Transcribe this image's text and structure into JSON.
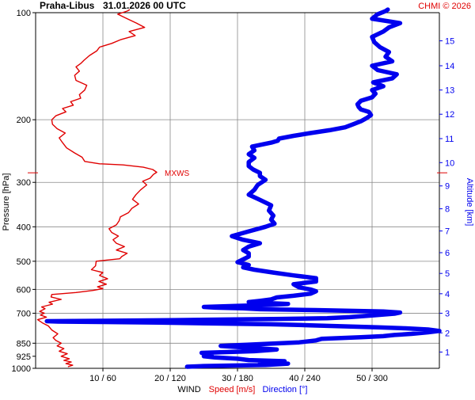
{
  "header": {
    "station": "Praha-Libus",
    "datetime": "31.01.2026 00 UTC",
    "credit": "CHMI © 2026"
  },
  "colors": {
    "speed": "#e00000",
    "direction": "#0000ee",
    "grid": "#888888",
    "axis": "#000000",
    "credit": "#e00000"
  },
  "chart_data": {
    "type": "line",
    "pressure_axis": {
      "label": "Pressure [hPa]",
      "scale": "log",
      "range": [
        1000,
        100
      ],
      "ticks": [
        100,
        200,
        300,
        400,
        500,
        600,
        700,
        850,
        925,
        1000
      ],
      "tick_labels": [
        "100",
        "200",
        "300",
        "400",
        "500",
        "600",
        "700",
        "850",
        "925",
        "1000"
      ],
      "gridlines": [
        200,
        300,
        400,
        500,
        600,
        700,
        850
      ]
    },
    "altitude_axis": {
      "label": "Altitude [km]",
      "ticks": [
        1,
        2,
        3,
        4,
        5,
        6,
        7,
        8,
        9,
        10,
        11,
        12,
        13,
        14,
        15
      ],
      "tick_labels": [
        "1",
        "2",
        "3",
        "4",
        "5",
        "6",
        "7",
        "8",
        "9",
        "10",
        "11",
        "12",
        "13",
        "14",
        "15"
      ],
      "pressure_at_km": [
        900,
        795,
        700,
        617,
        541,
        473,
        411,
        356,
        307,
        264,
        226,
        193,
        165,
        141,
        120
      ]
    },
    "wind_axis": {
      "label": "WIND",
      "speed_label": "Speed [m/s]",
      "direction_label": "Direction [°]",
      "speed_range": [
        0,
        60
      ],
      "direction_range": [
        0,
        360
      ],
      "ticks": [
        10,
        20,
        30,
        40,
        50
      ],
      "tick_labels": [
        "10 / 60",
        "20 / 120",
        "30 / 180",
        "40 / 240",
        "50 / 300"
      ]
    },
    "annotations": [
      {
        "text": "MXWS",
        "pressure": 282,
        "speed": 18.0
      }
    ],
    "series": [
      {
        "name": "Speed [m/s]",
        "color": "#e00000",
        "points": [
          [
            990,
            4.8
          ],
          [
            980,
            5.5
          ],
          [
            970,
            4.5
          ],
          [
            960,
            5.3
          ],
          [
            950,
            4.2
          ],
          [
            940,
            5.0
          ],
          [
            925,
            3.8
          ],
          [
            910,
            4.7
          ],
          [
            895,
            3.5
          ],
          [
            880,
            4.2
          ],
          [
            865,
            3.2
          ],
          [
            850,
            3.8
          ],
          [
            835,
            3.0
          ],
          [
            820,
            2.6
          ],
          [
            800,
            3.3
          ],
          [
            780,
            2.4
          ],
          [
            760,
            1.9
          ],
          [
            745,
            1.0
          ],
          [
            730,
            0.3
          ],
          [
            718,
            1.6
          ],
          [
            708,
            0.7
          ],
          [
            700,
            1.3
          ],
          [
            692,
            0.6
          ],
          [
            680,
            1.4
          ],
          [
            672,
            0.9
          ],
          [
            660,
            2.5
          ],
          [
            652,
            2.0
          ],
          [
            640,
            3.8
          ],
          [
            630,
            2.3
          ],
          [
            620,
            2.4
          ],
          [
            612,
            6.0
          ],
          [
            604,
            8.5
          ],
          [
            597,
            10.0
          ],
          [
            590,
            9.2
          ],
          [
            580,
            10.5
          ],
          [
            570,
            9.4
          ],
          [
            560,
            10.7
          ],
          [
            548,
            9.5
          ],
          [
            538,
            10.0
          ],
          [
            528,
            8.3
          ],
          [
            515,
            8.9
          ],
          [
            500,
            9.0
          ],
          [
            492,
            12.5
          ],
          [
            485,
            12.8
          ],
          [
            475,
            13.6
          ],
          [
            465,
            12.0
          ],
          [
            455,
            13.2
          ],
          [
            445,
            12.0
          ],
          [
            435,
            11.5
          ],
          [
            425,
            12.3
          ],
          [
            415,
            11.3
          ],
          [
            405,
            10.9
          ],
          [
            395,
            12.0
          ],
          [
            385,
            12.4
          ],
          [
            375,
            12.6
          ],
          [
            365,
            13.8
          ],
          [
            355,
            14.3
          ],
          [
            345,
            15.3
          ],
          [
            335,
            14.4
          ],
          [
            325,
            14.9
          ],
          [
            315,
            15.6
          ],
          [
            305,
            16.5
          ],
          [
            298,
            15.9
          ],
          [
            292,
            17.0
          ],
          [
            285,
            17.5
          ],
          [
            281,
            18.0
          ],
          [
            276,
            17.4
          ],
          [
            272,
            16.0
          ],
          [
            268,
            13.0
          ],
          [
            266,
            9.5
          ],
          [
            262,
            7.3
          ],
          [
            255,
            6.9
          ],
          [
            248,
            5.8
          ],
          [
            240,
            4.6
          ],
          [
            232,
            4.0
          ],
          [
            225,
            3.5
          ],
          [
            218,
            4.4
          ],
          [
            212,
            3.2
          ],
          [
            206,
            2.5
          ],
          [
            200,
            2.4
          ],
          [
            195,
            3.0
          ],
          [
            190,
            4.5
          ],
          [
            186,
            4.0
          ],
          [
            182,
            5.6
          ],
          [
            178,
            5.2
          ],
          [
            174,
            6.7
          ],
          [
            170,
            6.5
          ],
          [
            165,
            7.3
          ],
          [
            160,
            7.6
          ],
          [
            155,
            6.0
          ],
          [
            150,
            5.8
          ],
          [
            146,
            6.5
          ],
          [
            142,
            6.0
          ],
          [
            139,
            6.7
          ],
          [
            136,
            7.2
          ],
          [
            132,
            8.0
          ],
          [
            128,
            9.1
          ],
          [
            125,
            9.5
          ],
          [
            122,
            11.3
          ],
          [
            119,
            12.7
          ],
          [
            116,
            14.8
          ],
          [
            113,
            13.9
          ],
          [
            110,
            16.2
          ],
          [
            107,
            15.0
          ],
          [
            104,
            13.6
          ],
          [
            101,
            12.2
          ],
          [
            99,
            13.6
          ],
          [
            98,
            14.0
          ]
        ]
      },
      {
        "name": "Direction [°]",
        "color": "#0000ee",
        "points": [
          [
            990,
            135
          ],
          [
            985,
            150
          ],
          [
            978,
            205
          ],
          [
            970,
            225
          ],
          [
            962,
            200
          ],
          [
            955,
            222
          ],
          [
            948,
            190
          ],
          [
            940,
            180
          ],
          [
            932,
            160
          ],
          [
            925,
            150
          ],
          [
            915,
            157
          ],
          [
            905,
            148
          ],
          [
            895,
            195
          ],
          [
            885,
            215
          ],
          [
            875,
            190
          ],
          [
            865,
            165
          ],
          [
            855,
            200
          ],
          [
            845,
            235
          ],
          [
            835,
            250
          ],
          [
            826,
            255
          ],
          [
            818,
            290
          ],
          [
            812,
            310
          ],
          [
            806,
            320
          ],
          [
            800,
            335
          ],
          [
            792,
            350
          ],
          [
            785,
            360
          ],
          [
            778,
            350
          ],
          [
            772,
            330
          ],
          [
            767,
            305
          ],
          [
            762,
            275
          ],
          [
            757,
            245
          ],
          [
            752,
            210
          ],
          [
            748,
            160
          ],
          [
            744,
            110
          ],
          [
            741,
            60
          ],
          [
            739,
            20
          ],
          [
            737,
            10
          ],
          [
            735,
            60
          ],
          [
            732,
            120
          ],
          [
            729,
            170
          ],
          [
            726,
            220
          ],
          [
            723,
            260
          ],
          [
            718,
            280
          ],
          [
            710,
            300
          ],
          [
            702,
            320
          ],
          [
            697,
            325
          ],
          [
            692,
            310
          ],
          [
            686,
            250
          ],
          [
            682,
            200
          ],
          [
            678,
            185
          ],
          [
            675,
            160
          ],
          [
            672,
            150
          ],
          [
            669,
            170
          ],
          [
            666,
            190
          ],
          [
            663,
            210
          ],
          [
            659,
            225
          ],
          [
            655,
            205
          ],
          [
            651,
            190
          ],
          [
            646,
            200
          ],
          [
            640,
            210
          ],
          [
            632,
            215
          ],
          [
            625,
            230
          ],
          [
            617,
            245
          ],
          [
            607,
            250
          ],
          [
            600,
            245
          ],
          [
            592,
            235
          ],
          [
            580,
            230
          ],
          [
            570,
            250
          ],
          [
            558,
            250
          ],
          [
            548,
            230
          ],
          [
            538,
            212
          ],
          [
            528,
            195
          ],
          [
            520,
            185
          ],
          [
            512,
            190
          ],
          [
            503,
            180
          ],
          [
            494,
            185
          ],
          [
            485,
            190
          ],
          [
            475,
            190
          ],
          [
            465,
            185
          ],
          [
            455,
            190
          ],
          [
            445,
            200
          ],
          [
            435,
            185
          ],
          [
            425,
            175
          ],
          [
            412,
            190
          ],
          [
            400,
            205
          ],
          [
            392,
            213
          ],
          [
            382,
            210
          ],
          [
            372,
            212
          ],
          [
            360,
            208
          ],
          [
            348,
            210
          ],
          [
            336,
            200
          ],
          [
            325,
            190
          ],
          [
            315,
            195
          ],
          [
            305,
            198
          ],
          [
            295,
            205
          ],
          [
            288,
            200
          ],
          [
            282,
            200
          ],
          [
            276,
            194
          ],
          [
            270,
            190
          ],
          [
            263,
            190
          ],
          [
            256,
            195
          ],
          [
            250,
            190
          ],
          [
            244,
            195
          ],
          [
            238,
            193
          ],
          [
            232,
            210
          ],
          [
            229,
            216
          ],
          [
            226,
            217
          ],
          [
            222,
            230
          ],
          [
            218,
            245
          ],
          [
            214,
            262
          ],
          [
            210,
            276
          ],
          [
            206,
            283
          ],
          [
            202,
            290
          ],
          [
            198,
            295
          ],
          [
            194,
            299
          ],
          [
            190,
            297
          ],
          [
            187,
            290
          ],
          [
            184,
            288
          ],
          [
            181,
            287
          ],
          [
            177,
            290
          ],
          [
            173,
            300
          ],
          [
            169,
            303
          ],
          [
            165,
            300
          ],
          [
            161,
            310
          ],
          [
            157,
            301
          ],
          [
            153,
            318
          ],
          [
            149,
            322
          ],
          [
            145,
            305
          ],
          [
            141,
            300
          ],
          [
            137,
            318
          ],
          [
            133,
            312
          ],
          [
            129,
            315
          ],
          [
            125,
            307
          ],
          [
            121,
            302
          ],
          [
            117,
            300
          ],
          [
            113,
            310
          ],
          [
            110,
            315
          ],
          [
            107,
            325
          ],
          [
            104,
            300
          ],
          [
            101,
            305
          ],
          [
            99,
            312
          ],
          [
            98,
            314
          ]
        ]
      }
    ]
  }
}
